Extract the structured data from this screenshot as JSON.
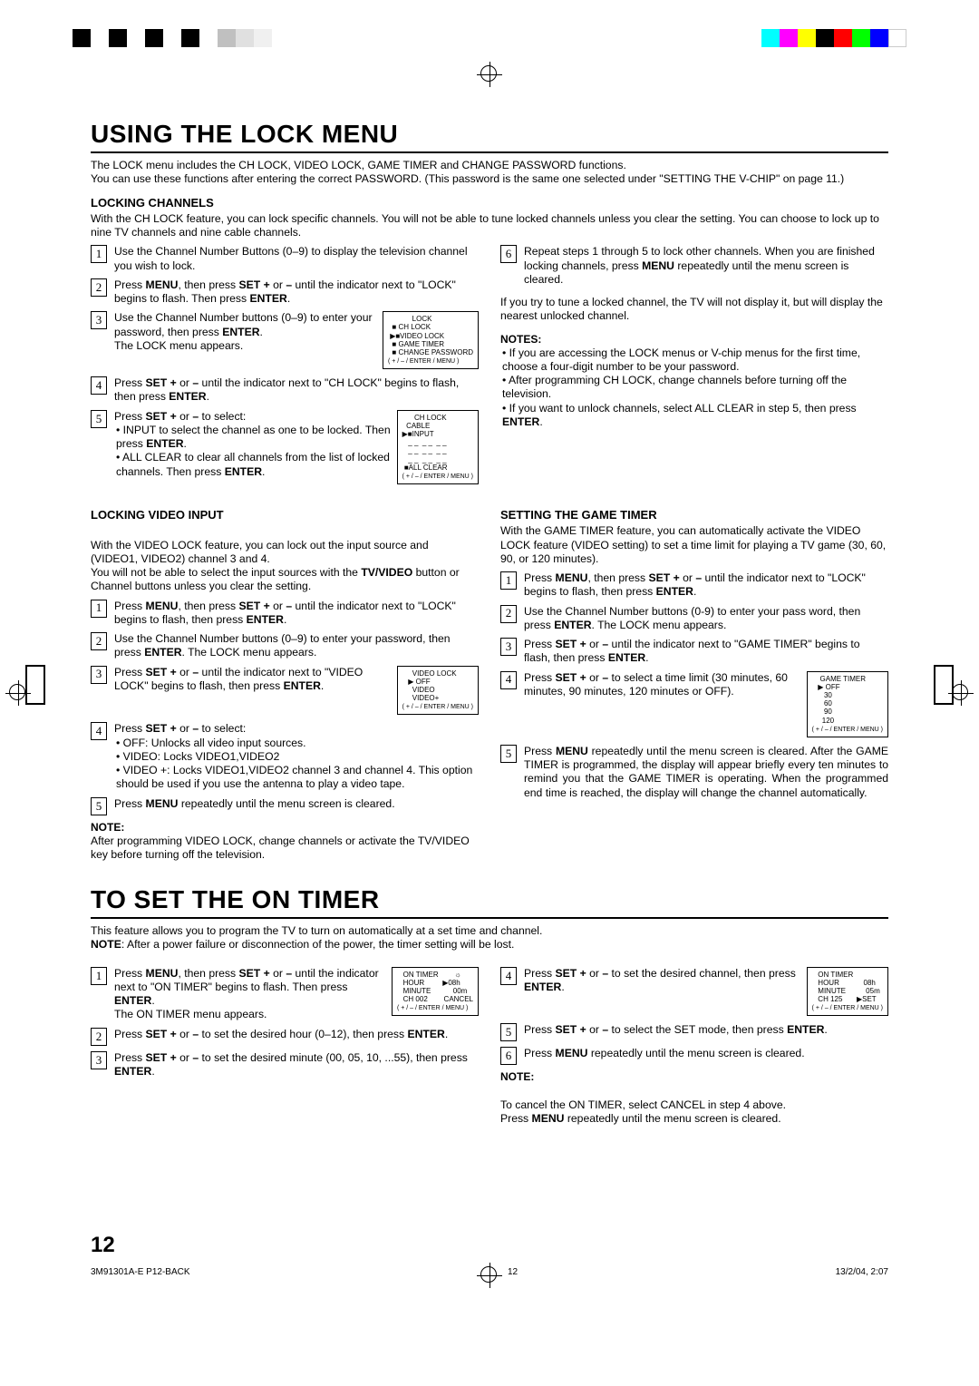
{
  "registration": {
    "bw": [
      "#000",
      "#fff",
      "#000",
      "#fff",
      "#000",
      "#fff",
      "#000",
      "#fff",
      "#c0c0c0",
      "#e0e0e0",
      "#f0f0f0"
    ],
    "color": [
      "#00ffff",
      "#ff00ff",
      "#ffff00",
      "#000000",
      "#ff0000",
      "#00ff00",
      "#0000ff",
      "#ffffff"
    ]
  },
  "section1": {
    "title": "USING THE LOCK MENU",
    "intro": "The LOCK menu includes the CH LOCK, VIDEO LOCK, GAME TIMER and CHANGE PASSWORD functions.\nYou can use these functions after entering the correct PASSWORD. (This password is the same one selected under \"SETTING THE V-CHIP\" on page 11.)",
    "lockingChannels": {
      "head": "LOCKING CHANNELS",
      "desc": "With the CH LOCK feature, you can lock specific channels. You will not be able to tune locked channels unless you clear the setting. You can choose to lock up to nine TV channels and nine cable channels.",
      "left": {
        "s1": "Use the Channel Number Buttons (0–9) to display the television channel you wish to lock.",
        "s2_a": "Press ",
        "s2_b": "MENU",
        "s2_c": ", then press ",
        "s2_d": "SET +",
        "s2_e": " or ",
        "s2_f": "–",
        "s2_g": "  until the indicator next to \"LOCK\" begins to flash. Then press ",
        "s2_h": "ENTER",
        "s2_i": ".",
        "s3_a": "Use the Channel Number buttons (0–9) to enter your password, then press ",
        "s3_b": "ENTER",
        "s3_c": ".",
        "s3_line2": "The LOCK menu appears.",
        "s4_a": "Press ",
        "s4_b": "SET +",
        "s4_c": " or ",
        "s4_d": "–",
        "s4_e": " until the indicator next to \"CH LOCK\"  begins to flash, then press ",
        "s4_f": "ENTER",
        "s4_g": ".",
        "s5_a": "Press ",
        "s5_b": "SET +",
        "s5_c": " or ",
        "s5_d": "–",
        "s5_e": " to select:",
        "s5_b1_a": "INPUT to select the channel as one to be locked. Then press  ",
        "s5_b1_b": "ENTER",
        "s5_b1_c": ".",
        "s5_b2_a": "ALL CLEAR to clear all channels from the list of locked channels. Then press ",
        "s5_b2_b": "ENTER",
        "s5_b2_c": ".",
        "menu1": "            LOCK\n  ■ CH LOCK\n ▶■VIDEO LOCK\n  ■ GAME TIMER\n  ■ CHANGE PASSWORD\n",
        "menu1_ctrl": "( + / – / ENTER / MENU )",
        "menu2": "      CH LOCK\n  CABLE\n▶■INPUT\n   _ _  _ _  _ _\n   _ _  _ _  _ _\n   _ _  _ _  _ _\n ■ALL CLEAR\n",
        "menu2_ctrl": "( + / – / ENTER / MENU )"
      },
      "right": {
        "s6_a": "Repeat steps 1 through 5 to lock other channels. When you are finished locking channels, press ",
        "s6_b": "MENU",
        "s6_c": " repeatedly until the menu screen is cleared.",
        "para": "If you try to tune a locked channel, the TV will not display it, but will display the nearest unlocked channel.",
        "noteshead": "NOTES",
        "notes": [
          "If you are accessing the LOCK menus or V-chip menus for the first time, choose a four-digit number to be your password.",
          "After programming CH LOCK, change channels before turning off the television.",
          "If you want to unlock channels, select ALL CLEAR in step 5, then press ENTER."
        ]
      }
    },
    "lockingVideo": {
      "head": "LOCKING VIDEO INPUT",
      "desc_a": "With the VIDEO LOCK feature, you can lock out the input source and (VIDEO1, VIDEO2) channel 3 and 4.\nYou will not be able to select the input sources with the ",
      "desc_b": "TV/VIDEO",
      "desc_c": " button or Channel buttons unless you clear the setting.",
      "s1_a": "Press ",
      "s1_b": "MENU",
      "s1_c": ", then press ",
      "s1_d": "SET +",
      "s1_e": " or ",
      "s1_f": "–",
      "s1_g": " until the indicator next to \"LOCK\" begins to flash, then press ",
      "s1_h": "ENTER",
      "s1_i": ".",
      "s2_a": "Use the Channel Number buttons (0–9) to enter your password, then press ",
      "s2_b": "ENTER",
      "s2_c": ". The LOCK menu appears.",
      "s3_a": "Press ",
      "s3_b": "SET +",
      "s3_c": " or ",
      "s3_d": "–",
      "s3_e": " until the indicator next to \"VIDEO LOCK\" begins to flash, then press ",
      "s3_f": "ENTER",
      "s3_g": ".",
      "s4_a": "Press ",
      "s4_b": "SET +",
      "s4_c": " or ",
      "s4_d": "–",
      "s4_e": " to select:",
      "s4_b1": "OFF: Unlocks all video input sources.",
      "s4_b2": "VIDEO: Locks VIDEO1,VIDEO2",
      "s4_b3": "VIDEO +: Locks  VIDEO1,VIDEO2 channel 3 and channel 4. This option should be used if you use the antenna to play a video tape.",
      "s5_a": "Press ",
      "s5_b": "MENU",
      "s5_c": " repeatedly until the menu screen is cleared.",
      "notehead": "NOTE",
      "note": "After programming VIDEO LOCK, change channels or activate the TV/VIDEO key before turning off the television.",
      "menu": "     VIDEO LOCK\n   ▶ OFF\n     VIDEO\n     VIDEO+\n",
      "menu_ctrl": "( + / – / ENTER / MENU )"
    },
    "gameTimer": {
      "head": "SETTING THE GAME TIMER",
      "desc": "With the GAME TIMER feature, you can automatically activate the VIDEO LOCK feature (VIDEO setting) to set a time limit for playing a TV game (30, 60, 90, or 120  minutes).",
      "s1_a": "Press ",
      "s1_b": "MENU",
      "s1_c": ", then press ",
      "s1_d": "SET +",
      "s1_e": " or ",
      "s1_f": "–",
      "s1_g": " until the indicator next to \"LOCK\" begins to flash, then press ",
      "s1_h": "ENTER",
      "s1_i": ".",
      "s2_a": "Use the Channel Number buttons (0-9) to enter your pass word, then press ",
      "s2_b": "ENTER",
      "s2_c": ". The LOCK menu appears.",
      "s3_a": "Press ",
      "s3_b": "SET +",
      "s3_c": "  or  ",
      "s3_d": "–",
      "s3_e": " until the indicator next to \"GAME TIMER\" begins to flash, then press ",
      "s3_f": "ENTER",
      "s3_g": ".",
      "s4_a": "Press ",
      "s4_b": "SET +",
      "s4_c": " or ",
      "s4_d": "–",
      "s4_e": " to select a time limit (30 minutes, 60 minutes, 90 minutes, 120 minutes or OFF).",
      "s5_a": "Press ",
      "s5_b": "MENU",
      "s5_c": " repeatedly until the menu screen is cleared. After the GAME TIMER is programmed, the display will appear briefly every ten minutes to remind you that the GAME TIMER is operating.  When the programmed end time is reached, the display will change the channel automatically.",
      "menu": "    GAME TIMER\n   ▶ OFF\n      30\n      60\n      90\n     120\n",
      "menu_ctrl": "( + / – / ENTER / MENU )"
    }
  },
  "section2": {
    "title": "TO SET THE ON TIMER",
    "intro_a": "This feature allows you to program the TV to turn on automatically at a set time and channel.",
    "intro_b": "NOTE",
    "intro_c": ": After a power failure or disconnection of the power, the timer setting will be lost.",
    "left": {
      "s1_a": "Press ",
      "s1_b": "MENU",
      "s1_c": ", then press ",
      "s1_d": "SET +",
      "s1_e": " or ",
      "s1_f": "–",
      "s1_g": "  until the indicator next to \"ON TIMER\" begins to flash. Then press ",
      "s1_h": "ENTER",
      "s1_i": ".",
      "s1_l2": "The ON TIMER menu appears.",
      "s2_a": "Press ",
      "s2_b": "SET +",
      "s2_c": " or ",
      "s2_d": "–",
      "s2_e": " to set the desired hour (0–12), then press ",
      "s2_f": "ENTER",
      "s2_g": ".",
      "s3_a": "Press ",
      "s3_b": "SET +",
      "s3_c": " or ",
      "s3_d": "–",
      "s3_e": " to set the desired minute (00, 05, 10, ...55), then press ",
      "s3_f": "ENTER",
      "s3_g": ".",
      "menu": "   ON TIMER        ☼\n   HOUR         ▶08h\n   MINUTE           00m\n   CH 002        CANCEL\n",
      "menu_ctrl": "( + / – / ENTER / MENU )"
    },
    "right": {
      "s4_a": "Press  ",
      "s4_b": "SET +",
      "s4_c": " or ",
      "s4_d": "–",
      "s4_e": "  to set the desired channel, then press ",
      "s4_f": "ENTER",
      "s4_g": ".",
      "s5_a": "Press ",
      "s5_b": "SET +",
      "s5_c": " or ",
      "s5_d": "–",
      "s5_e": " to select the SET mode, then press ",
      "s5_f": "ENTER",
      "s5_g": ".",
      "s6_a": "Press ",
      "s6_b": "MENU",
      "s6_c": " repeatedly until the menu screen is cleared.",
      "notehead": "NOTE",
      "note_a": "To cancel the ON TIMER, select CANCEL in step 4 above.\nPress ",
      "note_b": "MENU",
      "note_c": " repeatedly until the menu screen is cleared.",
      "menu": "   ON TIMER\n   HOUR            08h\n   MINUTE          05m\n   CH 125       ▶SET\n",
      "menu_ctrl": "( + / – / ENTER / MENU )"
    }
  },
  "pagenum": "12",
  "footer": {
    "left": "3M91301A-E P12-BACK",
    "mid": "12",
    "right": "13/2/04, 2:07"
  }
}
